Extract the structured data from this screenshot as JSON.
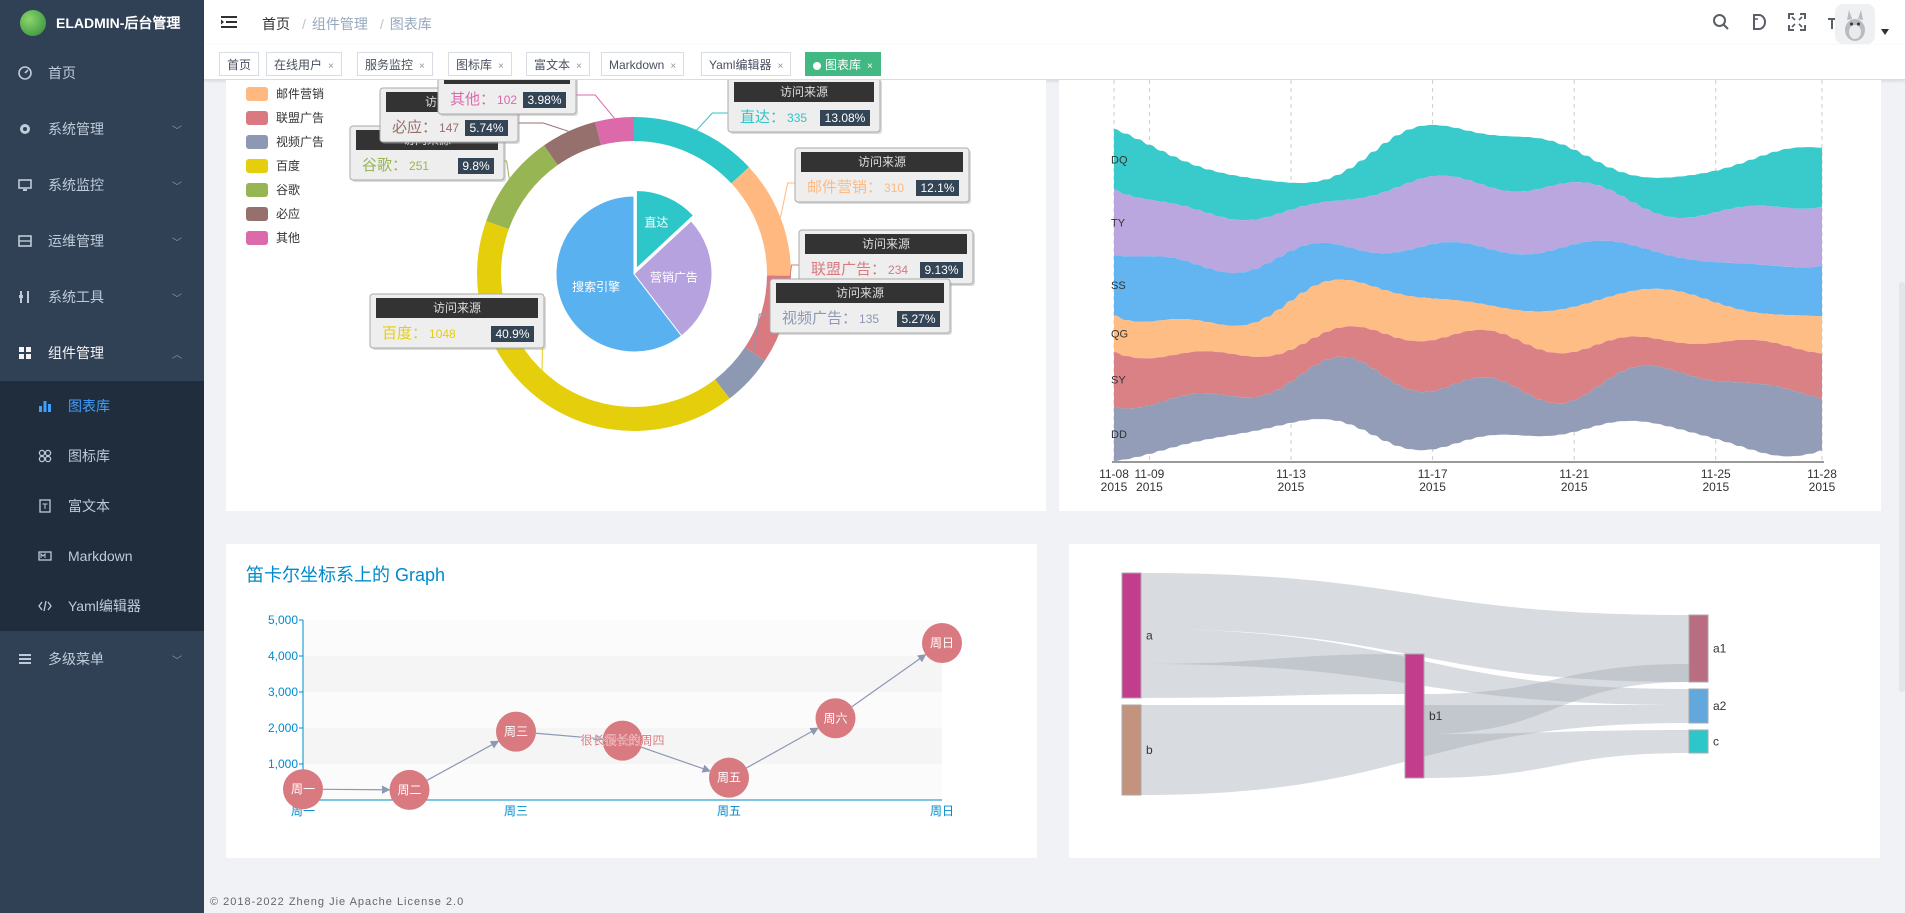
{
  "app": {
    "title": "ELADMIN-后台管理"
  },
  "sidebar": {
    "items": [
      {
        "label": "首页"
      },
      {
        "label": "系统管理"
      },
      {
        "label": "系统监控"
      },
      {
        "label": "运维管理"
      },
      {
        "label": "系统工具"
      },
      {
        "label": "组件管理"
      },
      {
        "label": "多级菜单"
      }
    ],
    "sub_items": [
      {
        "label": "图表库"
      },
      {
        "label": "图标库"
      },
      {
        "label": "富文本"
      },
      {
        "label": "Markdown"
      },
      {
        "label": "Yaml编辑器"
      }
    ]
  },
  "breadcrumb": {
    "home": "首页",
    "level1": "组件管理",
    "current": "图表库"
  },
  "tags": [
    {
      "label": "首页"
    },
    {
      "label": "在线用户"
    },
    {
      "label": "服务监控"
    },
    {
      "label": "图标库"
    },
    {
      "label": "富文本"
    },
    {
      "label": "Markdown"
    },
    {
      "label": "Yaml编辑器"
    },
    {
      "label": "图表库"
    }
  ],
  "footer": {
    "text": "© 2018-2022 Zheng Jie Apache License 2.0"
  },
  "pie_chart": {
    "legend": [
      "邮件营销",
      "联盟广告",
      "视频广告",
      "百度",
      "谷歌",
      "必应",
      "其他"
    ],
    "tooltip_title": "访问来源",
    "inner": [
      {
        "name": "直达",
        "value": 335
      },
      {
        "name": "营销广告",
        "value": 679
      },
      {
        "name": "搜索引擎",
        "value": 1548
      }
    ],
    "outer": [
      {
        "name": "直达",
        "value": 335,
        "percent": "13.08%"
      },
      {
        "name": "邮件营销",
        "value": 310,
        "percent": "12.1%"
      },
      {
        "name": "联盟广告",
        "value": 234,
        "percent": "9.13%"
      },
      {
        "name": "视频广告",
        "value": 135,
        "percent": "5.27%"
      },
      {
        "name": "百度",
        "value": 1048,
        "percent": "40.9%"
      },
      {
        "name": "谷歌",
        "value": 251,
        "percent": "9.8%"
      },
      {
        "name": "必应",
        "value": 147,
        "percent": "5.74%"
      },
      {
        "name": "其他",
        "value": 102,
        "percent": "3.98%"
      }
    ],
    "colors": {
      "直达": "#2ec7c9",
      "营销广告": "#b6a2de",
      "搜索引擎": "#5ab1ef",
      "邮件营销": "#ffb980",
      "联盟广告": "#d87a80",
      "视频广告": "#8d98b3",
      "百度": "#e5cf0d",
      "谷歌": "#97b552",
      "必应": "#95706d",
      "其他": "#dc69aa"
    }
  },
  "theme_river": {
    "series": [
      "DQ",
      "TY",
      "SS",
      "QG",
      "SY",
      "DD"
    ],
    "colors": [
      "#2ec7c9",
      "#b6a2de",
      "#5ab1ef",
      "#ffb980",
      "#d87a80",
      "#8d98b3"
    ],
    "x_ticks": [
      {
        "date": "11-08",
        "year": "2015",
        "day": 8
      },
      {
        "date": "11-09",
        "year": "2015",
        "day": 9
      },
      {
        "date": "11-13",
        "year": "2015",
        "day": 13
      },
      {
        "date": "11-17",
        "year": "2015",
        "day": 17
      },
      {
        "date": "11-21",
        "year": "2015",
        "day": 21
      },
      {
        "date": "11-25",
        "year": "2015",
        "day": 25
      },
      {
        "date": "11-28",
        "year": "2015",
        "day": 28
      }
    ]
  },
  "graph_chart": {
    "title": "笛卡尔坐标系上的 Graph",
    "y_ticks": [
      "5,000",
      "4,000",
      "3,000",
      "2,000",
      "1,000"
    ],
    "x_labels": [
      "周一",
      "周三",
      "周五",
      "周日"
    ],
    "nodes": [
      {
        "label": "周一",
        "day": 1,
        "value": 300
      },
      {
        "label": "周二",
        "day": 2,
        "value": 280
      },
      {
        "label": "周三",
        "day": 3,
        "value": 1900
      },
      {
        "label": "很长很长的周四",
        "day": 4,
        "value": 1650
      },
      {
        "label": "周五",
        "day": 5,
        "value": 620
      },
      {
        "label": "周六",
        "day": 6,
        "value": 2270
      },
      {
        "label": "周日",
        "day": 7,
        "value": 4360
      }
    ]
  },
  "chart_data": {
    "type": "sankey",
    "nodes": [
      "a",
      "b",
      "a1",
      "a2",
      "b1",
      "c"
    ],
    "links": [
      {
        "source": "a",
        "target": "a1",
        "value": 5
      },
      {
        "source": "a",
        "target": "a2",
        "value": 3
      },
      {
        "source": "b",
        "target": "a2",
        "value": 8
      },
      {
        "source": "a",
        "target": "b1",
        "value": 3
      },
      {
        "source": "b1",
        "target": "a1",
        "value": 1
      },
      {
        "source": "b1",
        "target": "c",
        "value": 2
      }
    ],
    "node_colors": {
      "a": "#c23e8d",
      "b": "#c4937d",
      "b1": "#c23e8d",
      "a1": "#b86d81",
      "a2": "#62a8dc",
      "c": "#2ec7c9"
    }
  }
}
